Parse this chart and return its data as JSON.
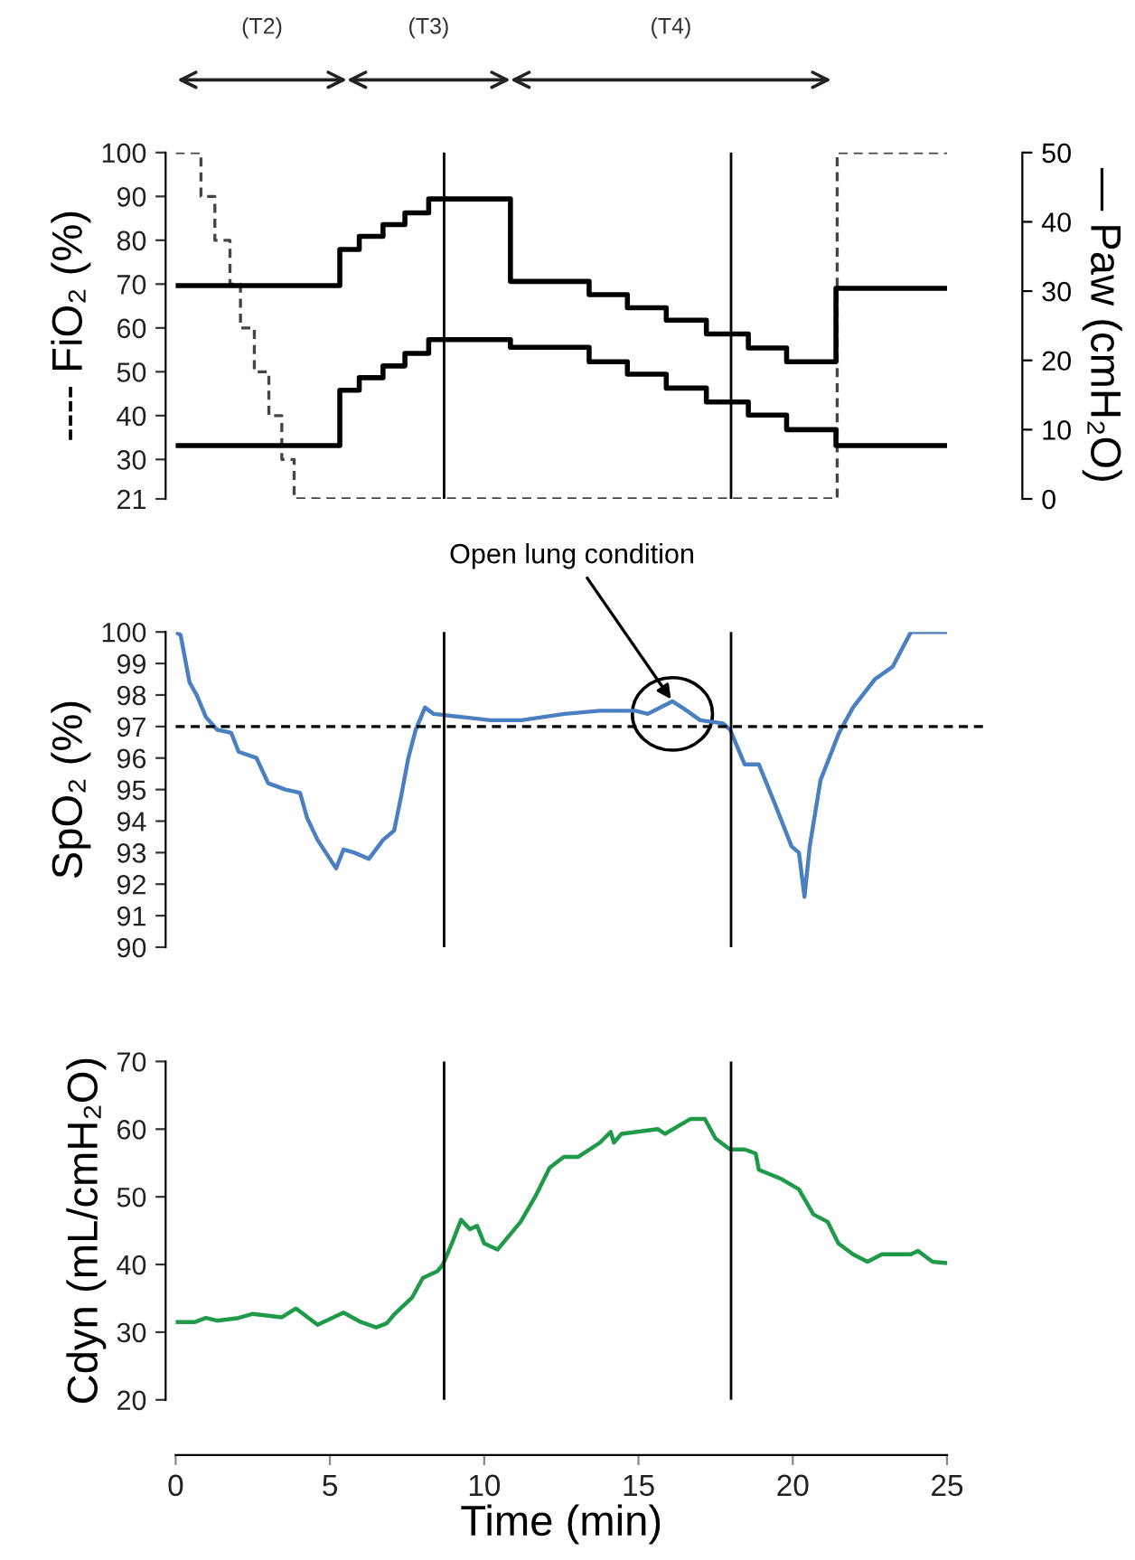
{
  "chart_data": [
    {
      "type": "step",
      "ylabel": "---- FiO₂ (%)",
      "y2label": "— Paw (cmH₂O)",
      "xlim": [
        0,
        25
      ],
      "ylim": [
        21,
        100
      ],
      "yticks": [
        21,
        30,
        40,
        50,
        60,
        70,
        80,
        90,
        100
      ],
      "y2lim": [
        0,
        50
      ],
      "y2ticks": [
        0,
        10,
        20,
        30,
        40,
        50
      ],
      "tick_labels": "y",
      "grid": false,
      "legend": false,
      "series": [
        {
          "axis": "y",
          "color": "#444444",
          "line_style": "dashed",
          "x": [
            0,
            0.82,
            1.27,
            1.76,
            2.1,
            2.55,
            3.02,
            3.44,
            3.84,
            21.44,
            25
          ],
          "values": [
            100,
            90,
            80,
            70,
            60,
            50,
            40,
            30,
            21,
            100,
            100
          ]
        },
        {
          "axis": "y2",
          "color": "#000000",
          "line_style": "solid",
          "x": [
            0,
            5.32,
            5.95,
            6.72,
            7.43,
            8.2,
            10.85,
            13.4,
            14.64,
            15.9,
            17.2,
            18.56,
            19.8,
            21.4,
            25
          ],
          "values": [
            30.8,
            36.0,
            37.9,
            39.6,
            41.3,
            43.3,
            31.4,
            29.5,
            27.6,
            25.8,
            23.8,
            21.8,
            19.8,
            30.4,
            30.4
          ]
        },
        {
          "axis": "y2",
          "color": "#000000",
          "line_style": "solid",
          "x": [
            0,
            5.32,
            5.95,
            6.72,
            7.43,
            8.2,
            10.85,
            13.4,
            14.64,
            15.9,
            17.2,
            18.56,
            19.8,
            21.4,
            25
          ],
          "values": [
            7.7,
            15.7,
            17.5,
            19.2,
            21.0,
            23.0,
            21.9,
            19.8,
            18.0,
            16.0,
            14.0,
            12.1,
            10.0,
            7.7,
            7.7
          ]
        }
      ],
      "annotations": [
        "(T2)",
        "(T3)",
        "(T4)"
      ],
      "ref_lines": [
        {
          "axis": "x",
          "value": 8.7,
          "color": "#000000"
        },
        {
          "axis": "x",
          "value": 18.0,
          "color": "#000000"
        }
      ]
    },
    {
      "type": "line",
      "ylabel": "SpO₂ (%)",
      "xlim": [
        0,
        25
      ],
      "ylim": [
        90,
        100
      ],
      "yticks": [
        90,
        91,
        92,
        93,
        94,
        95,
        96,
        97,
        98,
        99,
        100
      ],
      "tick_labels": "y",
      "grid": false,
      "legend": false,
      "series": [
        {
          "color": "#4a7fc1",
          "x": [
            0,
            0.16,
            0.45,
            0.68,
            0.98,
            1.34,
            1.8,
            2.04,
            2.62,
            3.0,
            3.56,
            4.03,
            4.26,
            4.6,
            5.2,
            5.44,
            5.79,
            6.26,
            6.72,
            7.08,
            7.31,
            7.54,
            7.78,
            8.08,
            8.36,
            9.3,
            10.2,
            11.2,
            12.6,
            13.75,
            14.9,
            15.3,
            16.1,
            16.57,
            17.0,
            17.74,
            17.97,
            18.44,
            18.9,
            19.4,
            19.96,
            20.2,
            20.38,
            20.55,
            20.9,
            21.5,
            21.95,
            22.66,
            23.24,
            23.83,
            25
          ],
          "values": [
            100,
            99.9,
            98.4,
            98.0,
            97.3,
            96.9,
            96.8,
            96.2,
            96.0,
            95.2,
            95.0,
            94.9,
            94.1,
            93.4,
            92.5,
            93.1,
            93.0,
            92.8,
            93.4,
            93.7,
            94.8,
            96.0,
            96.9,
            97.6,
            97.4,
            97.3,
            97.2,
            97.2,
            97.4,
            97.5,
            97.5,
            97.4,
            97.8,
            97.5,
            97.2,
            97.1,
            96.9,
            95.8,
            95.8,
            94.6,
            93.2,
            93.0,
            91.6,
            93.2,
            95.3,
            96.8,
            97.6,
            98.5,
            98.9,
            100,
            100
          ]
        }
      ],
      "ref_lines": [
        {
          "axis": "y",
          "value": 97,
          "color": "#000000",
          "line_style": "dashed"
        },
        {
          "axis": "x",
          "value": 8.7,
          "color": "#000000"
        },
        {
          "axis": "x",
          "value": 18.0,
          "color": "#000000"
        }
      ],
      "annotations": [
        {
          "text": "Open lung condition",
          "x": 16.1,
          "y": 97.8
        }
      ]
    },
    {
      "type": "line",
      "ylabel": "Cdyn (mL/cmH₂O)",
      "xlabel": "Time (min)",
      "xlim": [
        0,
        25
      ],
      "xticks": [
        0,
        5,
        10,
        15,
        20,
        25
      ],
      "ylim": [
        20,
        70
      ],
      "yticks": [
        20,
        30,
        40,
        50,
        60,
        70
      ],
      "grid": false,
      "legend": false,
      "series": [
        {
          "color": "#1e9a48",
          "x": [
            0,
            0.63,
            0.98,
            1.34,
            2.04,
            2.5,
            3.44,
            3.9,
            4.6,
            5.44,
            6.0,
            6.5,
            6.84,
            7.08,
            7.66,
            8.01,
            8.48,
            8.65,
            8.95,
            9.25,
            9.54,
            9.77,
            10.0,
            10.43,
            11.18,
            11.65,
            12.12,
            12.58,
            13.05,
            13.75,
            14.1,
            14.2,
            14.45,
            15.63,
            15.86,
            16.68,
            17.15,
            17.5,
            17.97,
            18.44,
            18.8,
            18.9,
            19.6,
            20.2,
            20.67,
            21.13,
            21.48,
            21.95,
            22.42,
            22.89,
            23.83,
            24.06,
            24.53,
            25
          ],
          "values": [
            31.5,
            31.5,
            32.1,
            31.7,
            32.1,
            32.7,
            32.2,
            33.5,
            31.1,
            32.9,
            31.5,
            30.7,
            31.3,
            32.6,
            35.1,
            38.0,
            39.0,
            39.9,
            43.1,
            46.6,
            45.2,
            45.7,
            43.1,
            42.2,
            46.3,
            50.0,
            54.3,
            55.9,
            55.9,
            58.0,
            59.6,
            58.0,
            59.3,
            60.0,
            59.3,
            61.5,
            61.5,
            58.6,
            57.0,
            57.0,
            56.4,
            54.0,
            52.7,
            51.1,
            47.4,
            46.3,
            43.1,
            41.5,
            40.4,
            41.5,
            41.5,
            42.0,
            40.4,
            40.2
          ]
        }
      ],
      "ref_lines": [
        {
          "axis": "x",
          "value": 8.7,
          "color": "#000000"
        },
        {
          "axis": "x",
          "value": 18.0,
          "color": "#000000"
        }
      ]
    }
  ]
}
